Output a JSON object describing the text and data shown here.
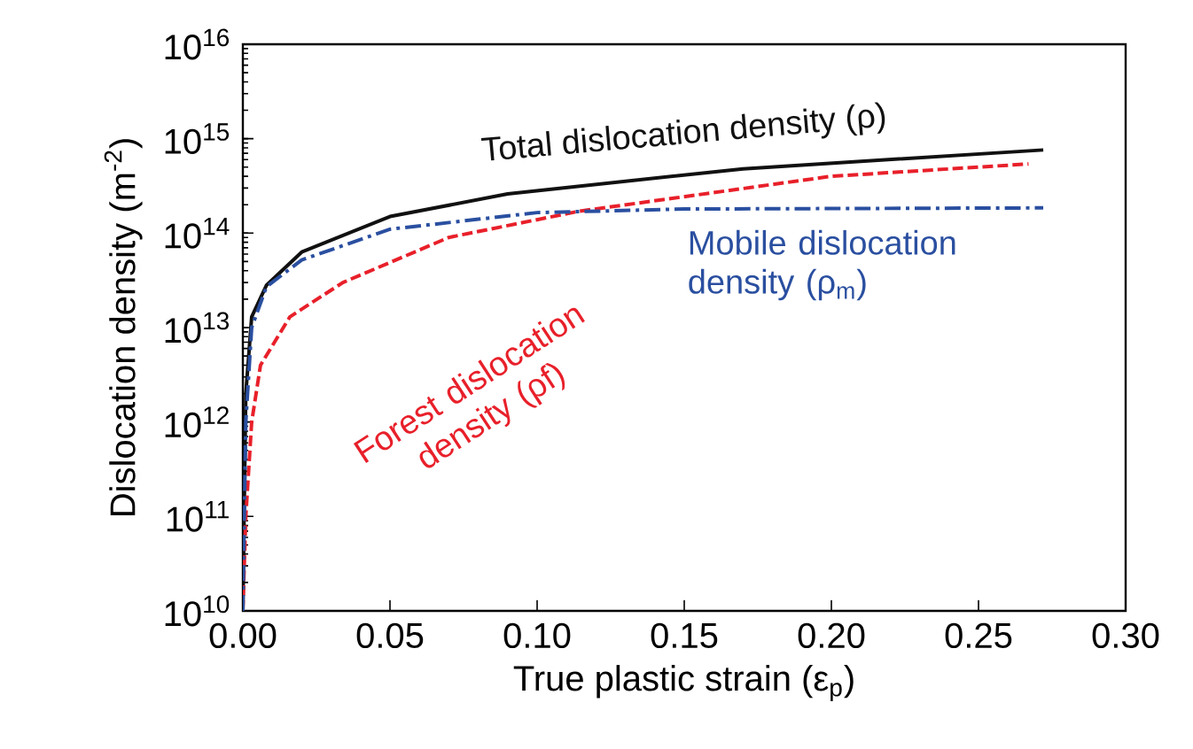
{
  "chart_data": {
    "type": "line",
    "xlabel": "True plastic strain (ε$_{p}$)",
    "ylabel": "Dislocation density (m$^{-2}$)",
    "log": "y",
    "xlim": [
      0,
      0.3
    ],
    "ylim": [
      10000000000.0,
      1e+16
    ],
    "xticks": [
      {
        "value": 0,
        "label": "0.00"
      },
      {
        "value": 0.05,
        "label": "0.05"
      },
      {
        "value": 0.1,
        "label": "0.10"
      },
      {
        "value": 0.15,
        "label": "0.15"
      },
      {
        "value": 0.2,
        "label": "0.20"
      },
      {
        "value": 0.25,
        "label": "0.25"
      },
      {
        "value": 0.3,
        "label": "0.30"
      }
    ],
    "yticks": [
      {
        "value": 10000000000.0,
        "label": "10$^{10}$"
      },
      {
        "value": 100000000000.0,
        "label": "10$^{11}$"
      },
      {
        "value": 1000000000000.0,
        "label": "10$^{12}$"
      },
      {
        "value": 10000000000000.0,
        "label": "10$^{13}$"
      },
      {
        "value": 100000000000000.0,
        "label": "10$^{14}$"
      },
      {
        "value": 1000000000000000.0,
        "label": "10$^{15}$"
      },
      {
        "value": 1e+16,
        "label": "10$^{16}$"
      }
    ],
    "series": [
      {
        "name": "Total dislocation density (ρ)",
        "color": "#111111",
        "line_style": "solid",
        "x": [
          0,
          0.001,
          0.003,
          0.008,
          0.02,
          0.05,
          0.09,
          0.17,
          0.272
        ],
        "values": [
          10000000000.0,
          2000000000000.0,
          13000000000000.0,
          28000000000000.0,
          63000000000000.0,
          150000000000000.0,
          260000000000000.0,
          480000000000000.0,
          760000000000000.0
        ]
      },
      {
        "name": "Forest dislocation density (ρf)",
        "color": "#e8202a",
        "line_style": "dashed",
        "x": [
          0,
          0.001,
          0.003,
          0.006,
          0.016,
          0.034,
          0.07,
          0.114,
          0.2,
          0.267
        ],
        "values": [
          10000000000.0,
          100000000000.0,
          1000000000000.0,
          4000000000000.0,
          13000000000000.0,
          30000000000000.0,
          90000000000000.0,
          170000000000000.0,
          400000000000000.0,
          540000000000000.0
        ]
      },
      {
        "name": "Mobile dislocation density (ρ$_{m}$)",
        "color": "#2a4fa0",
        "line_style": "dashdot",
        "x": [
          0,
          0.001,
          0.003,
          0.008,
          0.02,
          0.05,
          0.1,
          0.15,
          0.272
        ],
        "values": [
          10000000000.0,
          1000000000000.0,
          10000000000000.0,
          27000000000000.0,
          52000000000000.0,
          110000000000000.0,
          165000000000000.0,
          180000000000000.0,
          185000000000000.0
        ]
      }
    ]
  }
}
